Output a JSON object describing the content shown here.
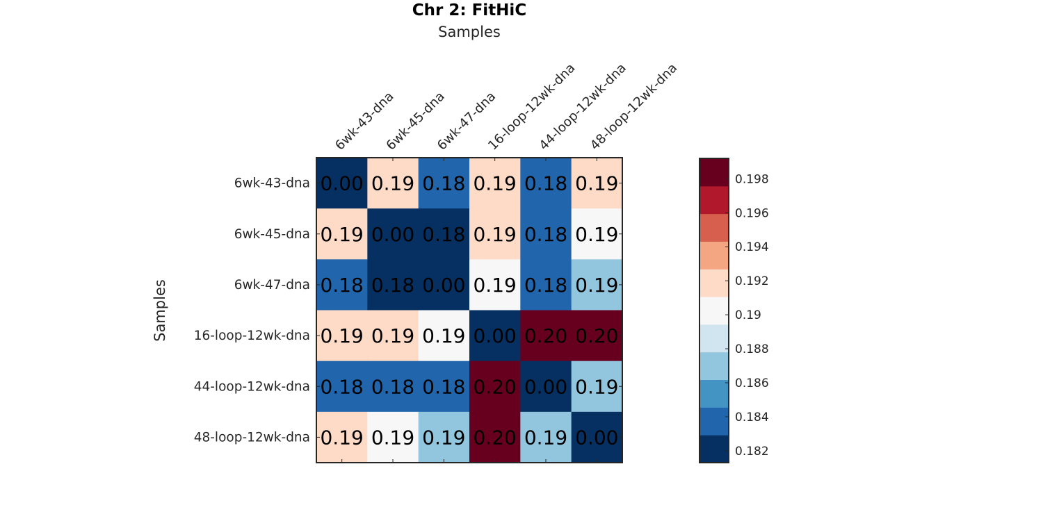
{
  "chart_data": {
    "type": "heatmap",
    "title": "Chr 2: FitHiC",
    "xlabel": "Samples",
    "ylabel": "Samples",
    "x_categories": [
      "6wk-43-dna",
      "6wk-45-dna",
      "6wk-47-dna",
      "16-loop-12wk-dna",
      "44-loop-12wk-dna",
      "48-loop-12wk-dna"
    ],
    "y_categories": [
      "6wk-43-dna",
      "6wk-45-dna",
      "6wk-47-dna",
      "16-loop-12wk-dna",
      "44-loop-12wk-dna",
      "48-loop-12wk-dna"
    ],
    "values": [
      [
        0.0,
        0.1915,
        0.1835,
        0.1925,
        0.1845,
        0.1925
      ],
      [
        0.1915,
        0.0,
        0.182,
        0.1915,
        0.1835,
        0.19
      ],
      [
        0.1835,
        0.182,
        0.0,
        0.19,
        0.1835,
        0.1865
      ],
      [
        0.1925,
        0.1915,
        0.19,
        0.0,
        0.1985,
        0.1985
      ],
      [
        0.1845,
        0.1835,
        0.1835,
        0.1985,
        0.0,
        0.1875
      ],
      [
        0.1925,
        0.19,
        0.1865,
        0.1985,
        0.1875,
        0.0
      ]
    ],
    "cell_labels": [
      [
        "0.00",
        "0.19",
        "0.18",
        "0.19",
        "0.18",
        "0.19"
      ],
      [
        "0.19",
        "0.00",
        "0.18",
        "0.19",
        "0.18",
        "0.19"
      ],
      [
        "0.18",
        "0.18",
        "0.00",
        "0.19",
        "0.18",
        "0.19"
      ],
      [
        "0.19",
        "0.19",
        "0.19",
        "0.00",
        "0.20",
        "0.20"
      ],
      [
        "0.18",
        "0.18",
        "0.18",
        "0.20",
        "0.00",
        "0.19"
      ],
      [
        "0.19",
        "0.19",
        "0.19",
        "0.20",
        "0.19",
        "0.00"
      ]
    ],
    "color_limits": [
      0.1813,
      0.1992
    ],
    "colormap": [
      "#053061",
      "#2166ac",
      "#4393c3",
      "#92c5de",
      "#d1e5f0",
      "#f7f7f7",
      "#fddbc7",
      "#f4a582",
      "#d6604d",
      "#b2182b",
      "#67001f"
    ],
    "colorbar_ticks": [
      0.182,
      0.184,
      0.186,
      0.188,
      0.19,
      0.192,
      0.194,
      0.196,
      0.198
    ],
    "colorbar_tick_labels": [
      "0.182",
      "0.184",
      "0.186",
      "0.188",
      "0.19",
      "0.192",
      "0.194",
      "0.196",
      "0.198"
    ],
    "colorbar_position": "right",
    "grid": false
  }
}
